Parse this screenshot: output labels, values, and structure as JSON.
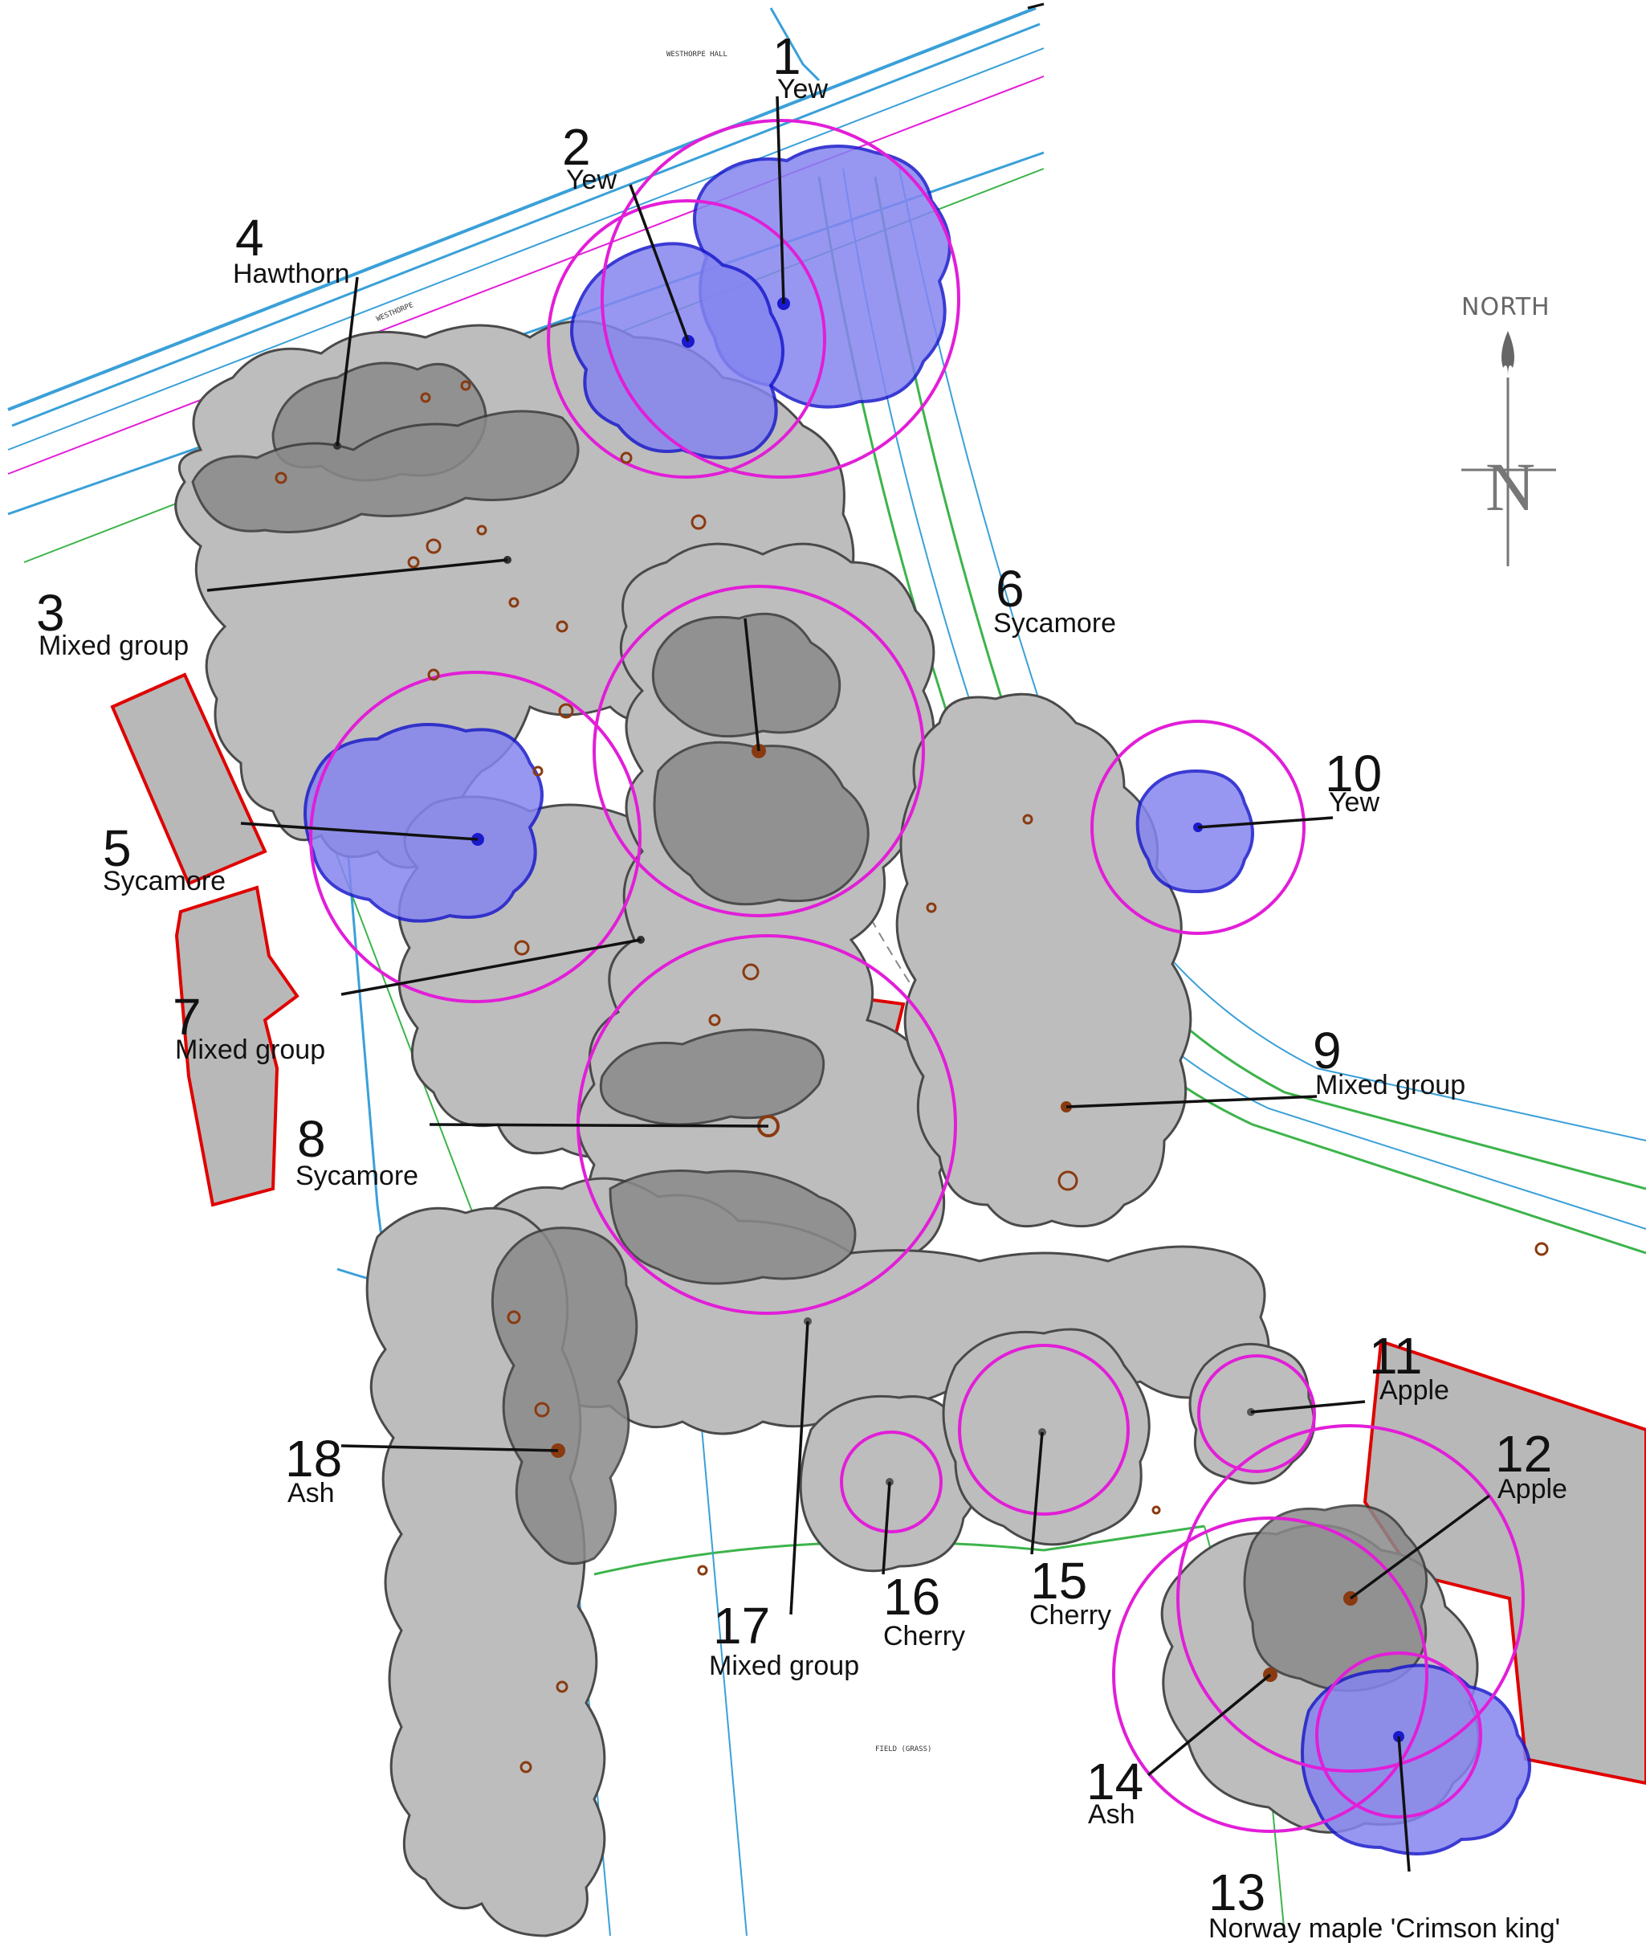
{
  "north_label": "NORTH",
  "north_letter": "N",
  "site_labels": {
    "road": "WESTHORPE",
    "drive": "WESTHORPE HALL",
    "footpath": "FIELD (GRASS)"
  },
  "trees": [
    {
      "id": "t1",
      "number": "1",
      "name": "Yew"
    },
    {
      "id": "t2",
      "number": "2",
      "name": "Yew"
    },
    {
      "id": "t3",
      "number": "3",
      "name": "Mixed group"
    },
    {
      "id": "t4",
      "number": "4",
      "name": "Hawthorn"
    },
    {
      "id": "t5",
      "number": "5",
      "name": "Sycamore"
    },
    {
      "id": "t6",
      "number": "6",
      "name": "Sycamore"
    },
    {
      "id": "t7",
      "number": "7",
      "name": "Mixed group"
    },
    {
      "id": "t8",
      "number": "8",
      "name": "Sycamore"
    },
    {
      "id": "t9",
      "number": "9",
      "name": "Mixed group"
    },
    {
      "id": "t10",
      "number": "10",
      "name": "Yew"
    },
    {
      "id": "t11",
      "number": "11",
      "name": "Apple"
    },
    {
      "id": "t12",
      "number": "12",
      "name": "Apple"
    },
    {
      "id": "t13",
      "number": "13",
      "name": "Norway maple 'Crimson king'"
    },
    {
      "id": "t14",
      "number": "14",
      "name": "Ash"
    },
    {
      "id": "t15",
      "number": "15",
      "name": "Cherry"
    },
    {
      "id": "t16",
      "number": "16",
      "name": "Cherry"
    },
    {
      "id": "t17",
      "number": "17",
      "name": "Mixed group"
    },
    {
      "id": "t18",
      "number": "18",
      "name": "Ash"
    }
  ],
  "colors": {
    "canopy_grey": "#bdbdbd",
    "canopy_retained_blue": "#8585f0",
    "root_protection_magenta": "#e21ed8",
    "building_outline_red": "#e00000",
    "road_lines_blue": "#3aa0d8",
    "hedge_green": "#3cb44b"
  }
}
